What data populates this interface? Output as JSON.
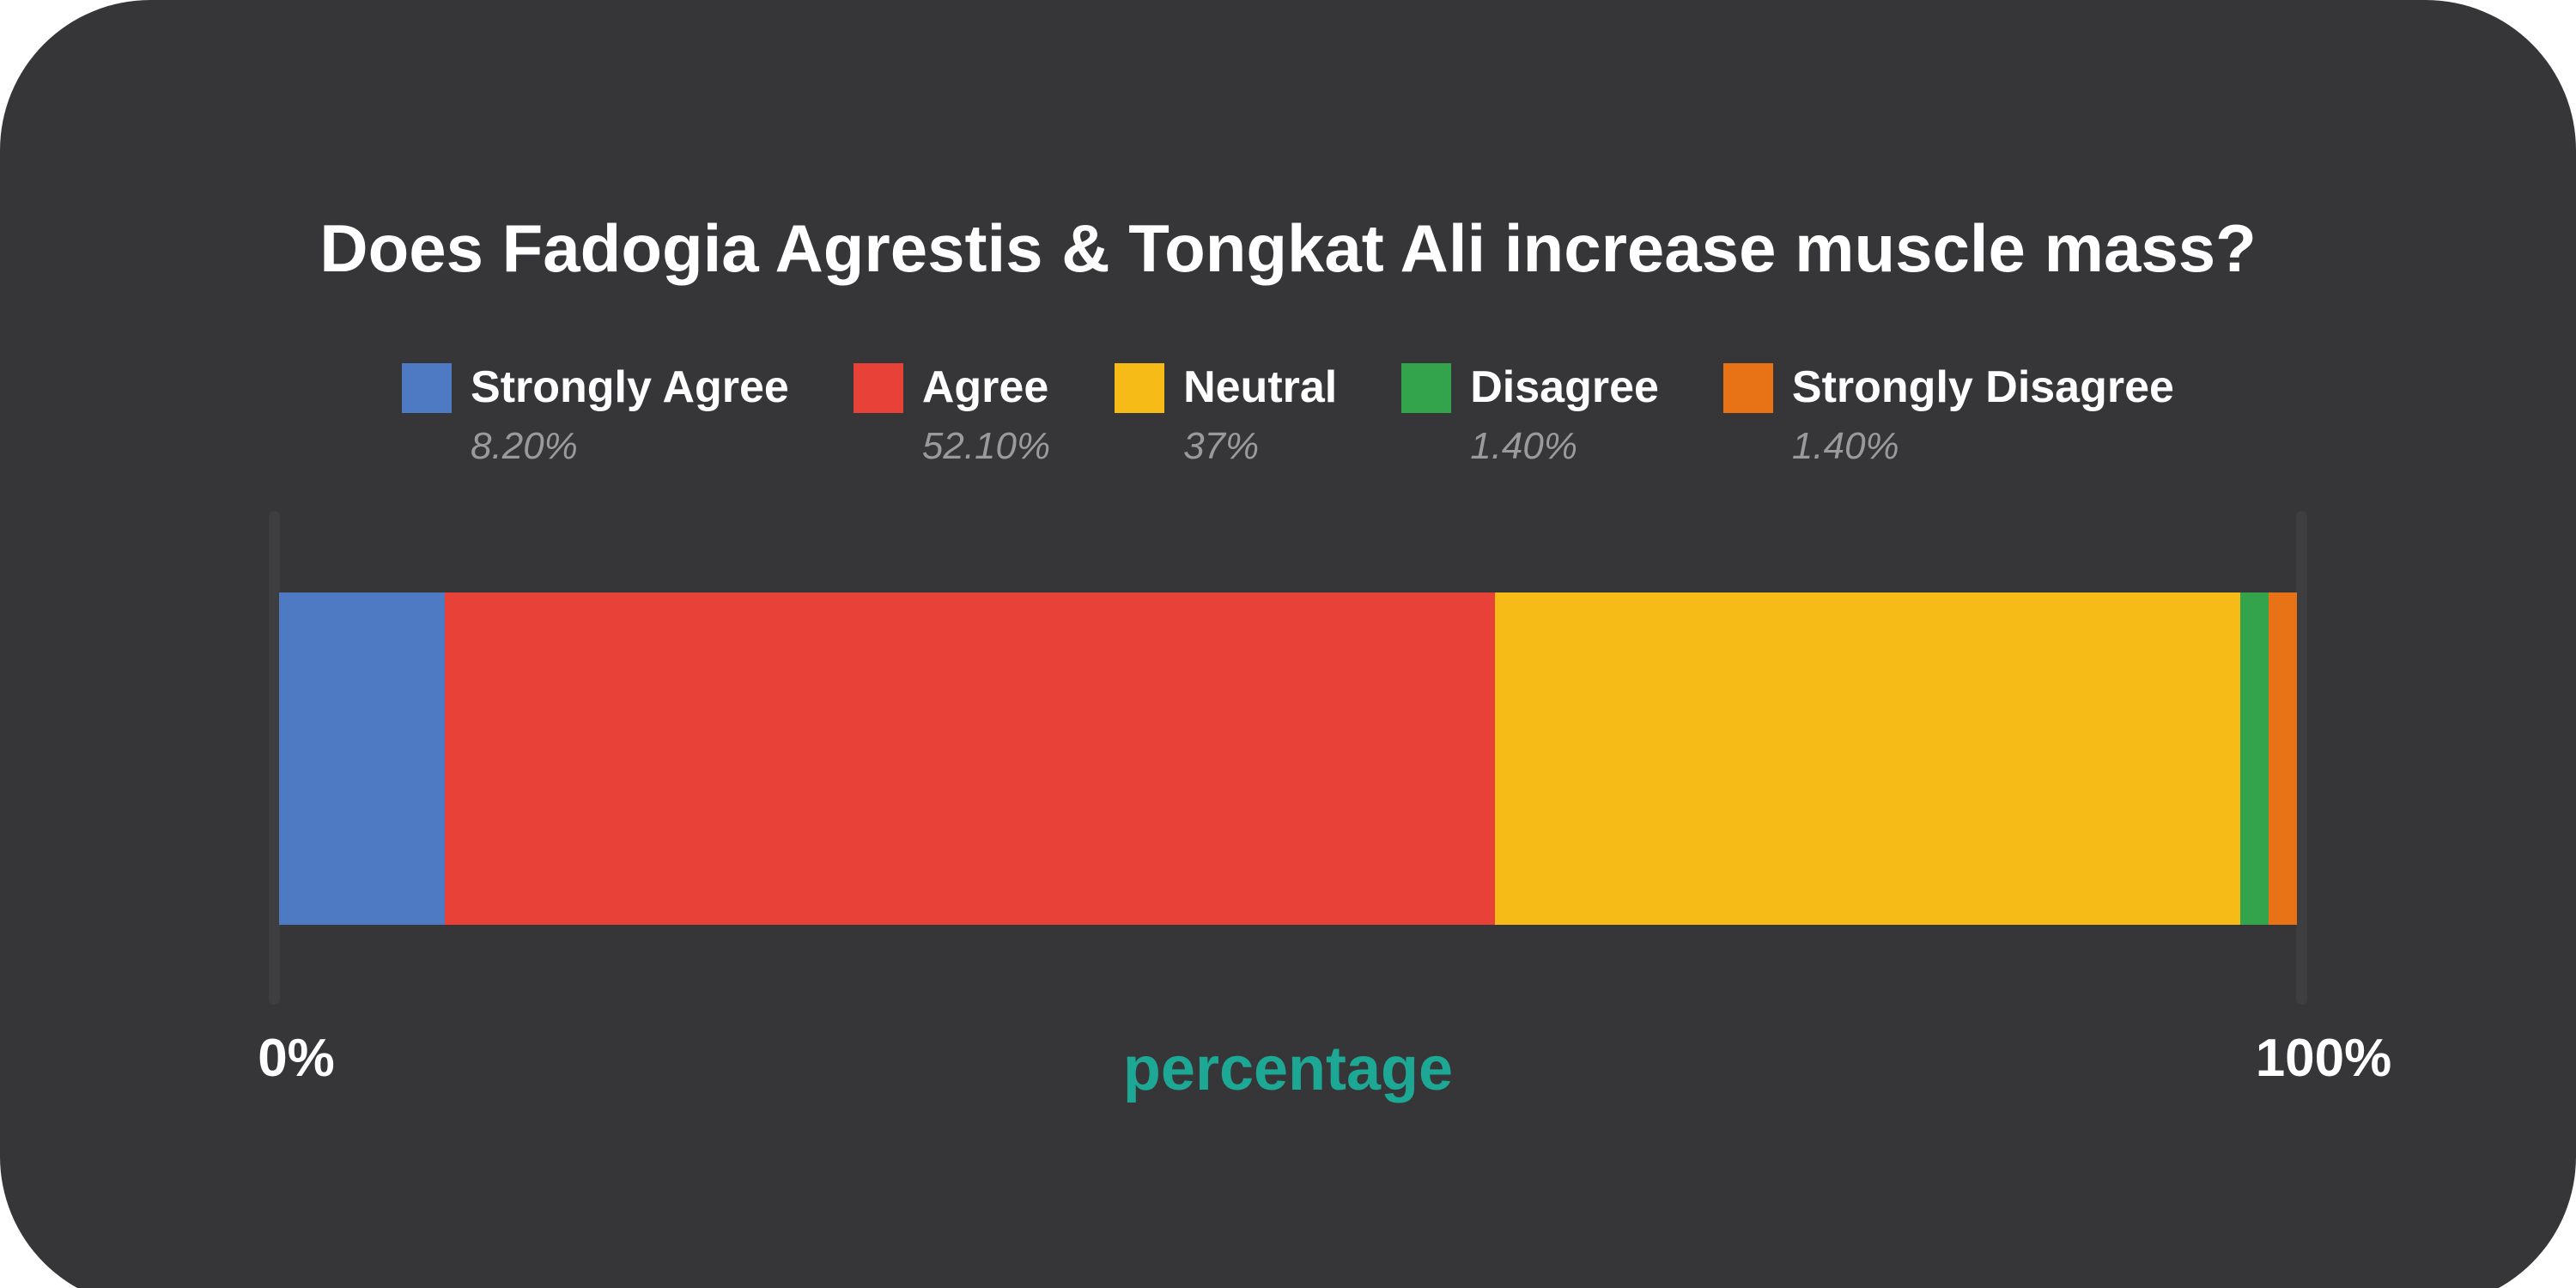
{
  "colors": {
    "page_background": "#ffffff",
    "card_background": "#363638",
    "axis_tick": "#3e3e40",
    "text_primary": "#ffffff",
    "text_muted_italic": "#9a9a9c",
    "axis_title_teal": "#1ca894"
  },
  "chart_data": {
    "type": "bar",
    "variant": "horizontal-stacked-single-bar",
    "title": "Does Fadogia Agrestis & Tongkat Ali increase muscle mass?",
    "categories": [
      "Strongly Agree",
      "Agree",
      "Neutral",
      "Disagree",
      "Strongly Disagree"
    ],
    "values": [
      8.2,
      52.1,
      37,
      1.4,
      1.4
    ],
    "value_labels": [
      "8.20%",
      "52.10%",
      "37%",
      "1.40%",
      "1.40%"
    ],
    "series_colors": [
      "#4e7ac4",
      "#e84238",
      "#f6bb17",
      "#34a44c",
      "#e87317"
    ],
    "xlabel": "percentage",
    "x_axis": {
      "min_label": "0%",
      "max_label": "100%",
      "range": [
        0,
        100
      ]
    },
    "legend_position": "top",
    "grid": false,
    "background": "#363638"
  }
}
